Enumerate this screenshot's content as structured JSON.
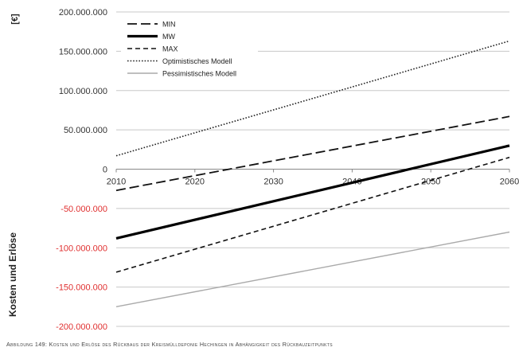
{
  "chart_data": {
    "type": "line",
    "unit_label": "[€]",
    "ylabel": "Kosten und Erlöse",
    "xlabel": "",
    "title": "",
    "xlim": [
      2010,
      2060
    ],
    "ylim": [
      -200000000,
      200000000
    ],
    "x_ticks": [
      2010,
      2020,
      2030,
      2040,
      2050,
      2060
    ],
    "x_tick_labels": [
      "2010",
      "2020",
      "2030",
      "2040",
      "2050",
      "2060"
    ],
    "y_ticks": [
      200000000,
      150000000,
      100000000,
      50000000,
      0,
      -50000000,
      -100000000,
      -150000000,
      -200000000
    ],
    "y_tick_labels": [
      "200.000.000",
      "150.000.000",
      "100.000.000",
      "50.000.000",
      "0",
      "-50.000.000",
      "-100.000.000",
      "-150.000.000",
      "-200.000.000"
    ],
    "negative_tick_color": "#e03030",
    "positive_tick_color": "#333333",
    "grid": "horizontal",
    "legend_position": "top-left",
    "series": [
      {
        "name": "MIN",
        "x": [
          2010,
          2060
        ],
        "y": [
          -27000000,
          67000000
        ],
        "color": "#111111",
        "style": "long-dash"
      },
      {
        "name": "MW",
        "x": [
          2010,
          2060
        ],
        "y": [
          -88000000,
          30000000
        ],
        "color": "#000000",
        "style": "solid-thick"
      },
      {
        "name": "MAX",
        "x": [
          2010,
          2060
        ],
        "y": [
          -131000000,
          15000000
        ],
        "color": "#111111",
        "style": "dash"
      },
      {
        "name": "Optimistisches Modell",
        "x": [
          2010,
          2060
        ],
        "y": [
          17000000,
          163000000
        ],
        "color": "#222222",
        "style": "dotted"
      },
      {
        "name": "Pessimistisches Modell",
        "x": [
          2010,
          2060
        ],
        "y": [
          -175000000,
          -80000000
        ],
        "color": "#aaaaaa",
        "style": "solid-thin"
      }
    ]
  },
  "caption": "Abbildung 149: Kosten und Erlöse des Rückbaus der Kreismülldeponie Hechingen in Abhängigkeit des Rückbauzeitpunkts"
}
